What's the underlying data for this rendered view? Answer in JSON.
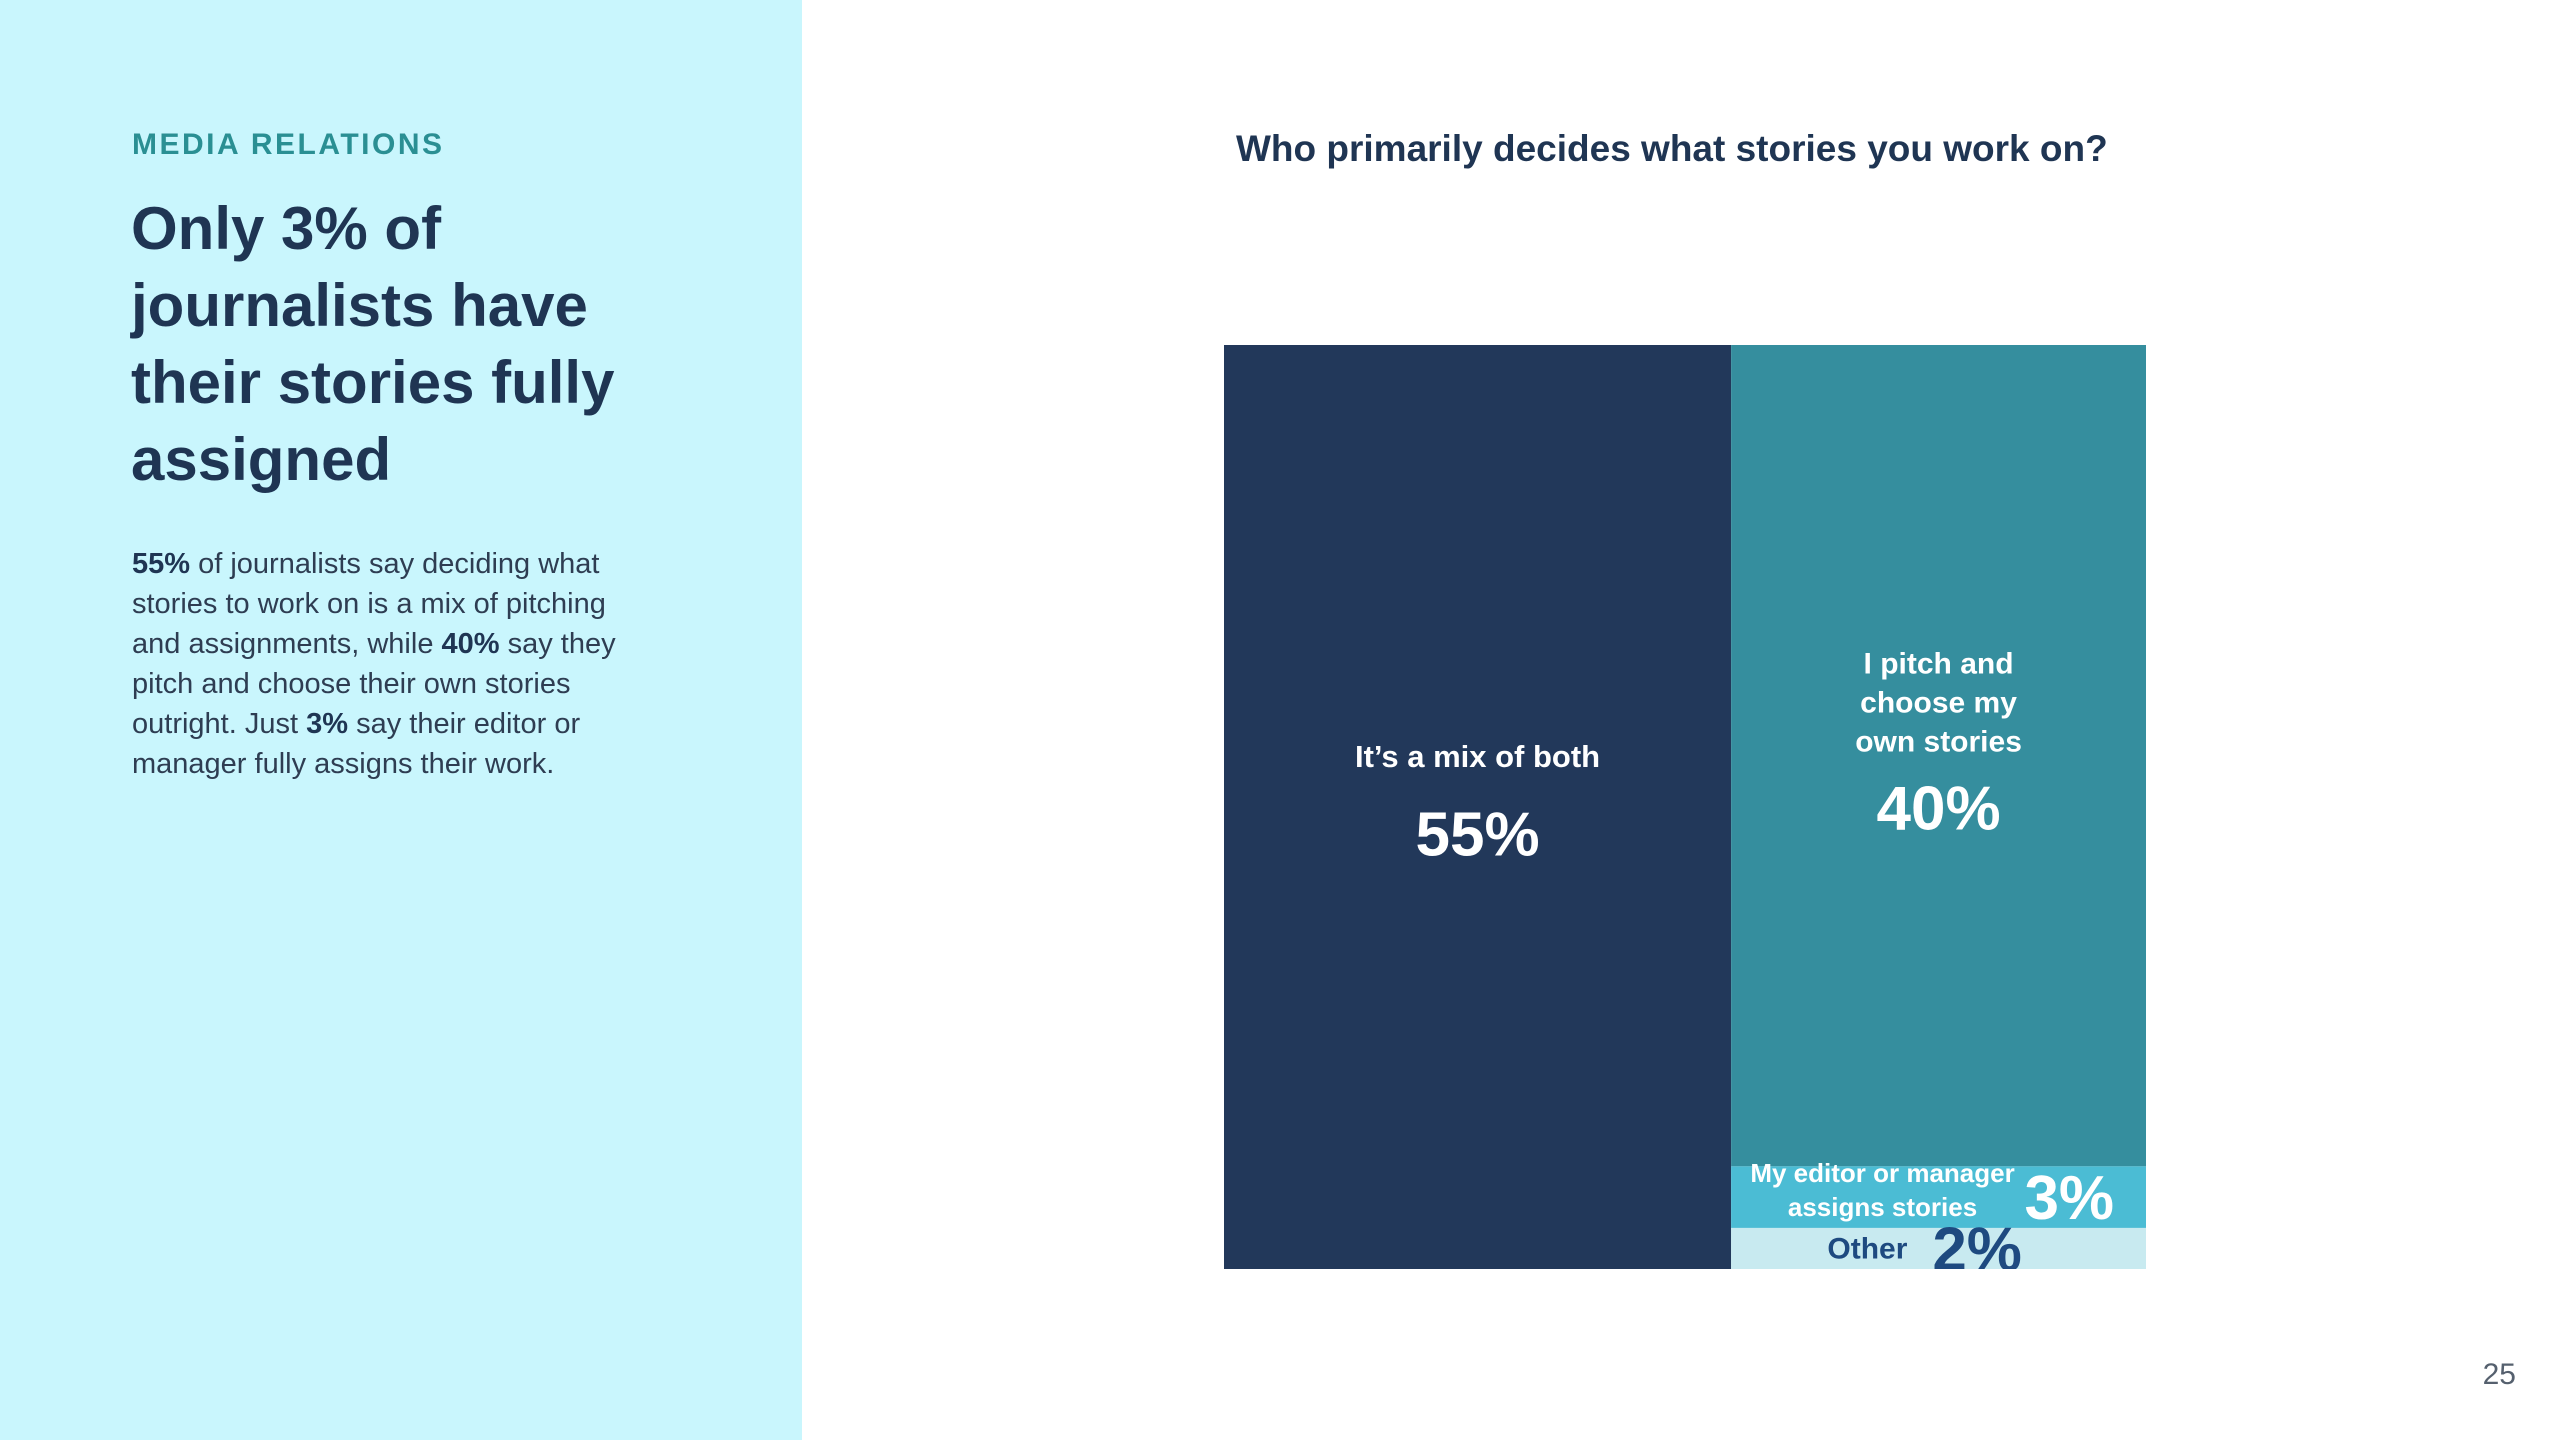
{
  "slide": {
    "eyebrow": "MEDIA RELATIONS",
    "headline": "Only 3% of journalists have their stories fully assigned",
    "body": {
      "s1_bold": "55%",
      "s1": " of journalists say deciding what stories to work on is a mix of pitching and assignments, while ",
      "s2_bold": "40%",
      "s2": " say they pitch and choose their own stories outright. Just ",
      "s3_bold": "3%",
      "s3": " say their editor or manager fully assigns their work."
    },
    "page_number": "25"
  },
  "colors": {
    "panel_bg": "#c9f6fd",
    "eyebrow": "#2a8f93",
    "navy": "#22385a",
    "teal": "#358e9e",
    "cyan": "#4bbcd4",
    "pale": "#c8eaf0",
    "other_text": "#1e4a80"
  },
  "chart_data": {
    "type": "treemap",
    "title": "Who primarily decides what stories you work on?",
    "segments": [
      {
        "label": "It’s a mix of both",
        "value": 55,
        "display": "55%",
        "color": "#22385a"
      },
      {
        "label": "I pitch and choose my own stories",
        "label_lines": [
          "I pitch and",
          "choose my",
          "own stories"
        ],
        "value": 40,
        "display": "40%",
        "color": "#358e9e"
      },
      {
        "label": "My editor or manager assigns stories",
        "label_lines": [
          "My editor or manager",
          "assigns stories"
        ],
        "value": 3,
        "display": "3%",
        "color": "#4bbcd4"
      },
      {
        "label": "Other",
        "value": 2,
        "display": "2%",
        "color": "#c8eaf0"
      }
    ]
  }
}
